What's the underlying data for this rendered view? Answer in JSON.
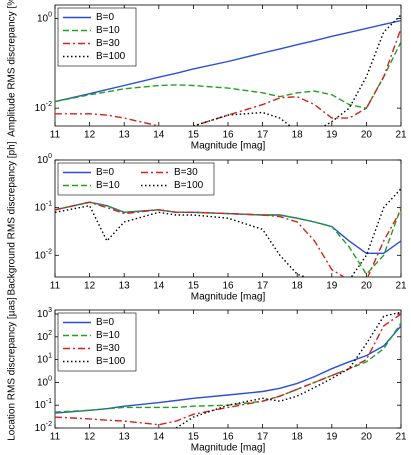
{
  "chart_data": [
    {
      "type": "line",
      "yscale": "log",
      "xlabel": "Magnitude [mag]",
      "ylabel": "Amplitude RMS discrepancy [%]",
      "legend": "upper left",
      "legend_columns": 1,
      "x": [
        11,
        12,
        12.5,
        13,
        14,
        14.5,
        15,
        16,
        17,
        17.5,
        18,
        18.5,
        19,
        19.5,
        20,
        20.5,
        21
      ],
      "xlim": [
        11,
        21
      ],
      "xticks": [
        11,
        12,
        13,
        14,
        15,
        16,
        17,
        18,
        19,
        20,
        21
      ],
      "ylim": [
        0.004,
        2
      ],
      "yticks": [
        {
          "value": 0.01,
          "label": "10^-2"
        },
        {
          "value": 1,
          "label": "10^0"
        }
      ],
      "series": [
        {
          "name": "B=0",
          "color": "#2a4fd6",
          "style": "solid",
          "values": [
            0.014,
            0.021,
            0.026,
            0.032,
            0.049,
            0.06,
            0.075,
            0.11,
            0.17,
            0.21,
            0.26,
            0.32,
            0.4,
            0.49,
            0.6,
            0.74,
            0.9
          ]
        },
        {
          "name": "B=10",
          "color": "#22a022",
          "style": "dashed",
          "values": [
            0.014,
            0.02,
            0.023,
            0.027,
            0.032,
            0.033,
            0.032,
            0.028,
            0.022,
            0.018,
            0.022,
            0.024,
            0.02,
            0.012,
            0.01,
            0.05,
            0.3
          ]
        },
        {
          "name": "B=30",
          "color": "#d62020",
          "style": "dashdot",
          "values": [
            0.0075,
            0.0075,
            0.007,
            0.006,
            0.004,
            0.003,
            0.004,
            0.007,
            0.012,
            0.017,
            0.018,
            0.012,
            0.006,
            0.006,
            0.01,
            0.05,
            0.6
          ]
        },
        {
          "name": "B=100",
          "color": "#000000",
          "style": "dotted",
          "values": [
            null,
            null,
            null,
            null,
            null,
            null,
            0.004,
            0.007,
            0.008,
            0.006,
            0.003,
            0.003,
            0.005,
            0.01,
            0.05,
            0.5,
            1.2
          ]
        }
      ]
    },
    {
      "type": "line",
      "yscale": "log",
      "xlabel": "Magnitude [mag]",
      "ylabel": "Background RMS discrepancy [ph]",
      "legend": "upper left",
      "legend_columns": 2,
      "x": [
        11,
        12,
        12.5,
        13,
        14,
        14.5,
        15,
        16,
        17,
        17.5,
        18,
        18.5,
        19,
        19.5,
        20,
        20.5,
        21
      ],
      "xlim": [
        11,
        21
      ],
      "xticks": [
        11,
        12,
        13,
        14,
        15,
        16,
        17,
        18,
        19,
        20,
        21
      ],
      "ylim": [
        0.0035,
        1
      ],
      "yticks": [
        {
          "value": 0.01,
          "label": "10^-2"
        },
        {
          "value": 0.1,
          "label": "10^-1"
        },
        {
          "value": 1,
          "label": "10^0"
        }
      ],
      "series": [
        {
          "name": "B=0",
          "color": "#2a4fd6",
          "style": "solid",
          "values": [
            0.09,
            0.13,
            0.11,
            0.08,
            0.09,
            0.08,
            0.08,
            0.075,
            0.07,
            0.07,
            0.06,
            0.05,
            0.04,
            0.02,
            0.011,
            0.011,
            0.02
          ]
        },
        {
          "name": "B=10",
          "color": "#22a022",
          "style": "dashed",
          "values": [
            0.09,
            0.13,
            0.11,
            0.08,
            0.09,
            0.08,
            0.08,
            0.075,
            0.07,
            0.07,
            0.06,
            0.05,
            0.04,
            0.015,
            0.004,
            0.01,
            0.1
          ]
        },
        {
          "name": "B=30",
          "color": "#d62020",
          "style": "dashdot",
          "values": [
            0.09,
            0.13,
            0.1,
            0.075,
            0.09,
            0.08,
            0.08,
            0.075,
            0.07,
            0.065,
            0.05,
            0.02,
            0.005,
            0.003,
            0.003,
            0.02,
            0.09
          ]
        },
        {
          "name": "B=100",
          "color": "#000000",
          "style": "dotted",
          "values": [
            0.08,
            0.11,
            0.02,
            0.05,
            0.08,
            0.07,
            0.07,
            0.06,
            0.035,
            0.01,
            0.004,
            0.003,
            0.003,
            0.003,
            0.01,
            0.1,
            0.25
          ]
        }
      ]
    },
    {
      "type": "line",
      "yscale": "log",
      "xlabel": "Magnitude [mag]",
      "ylabel": "Location RMS discrepancy [µas]",
      "legend": "upper left",
      "legend_columns": 1,
      "x": [
        11,
        12,
        12.5,
        13,
        14,
        14.5,
        15,
        16,
        17,
        17.5,
        18,
        18.5,
        19,
        19.5,
        20,
        20.5,
        21
      ],
      "xlim": [
        11,
        21
      ],
      "xticks": [
        11,
        12,
        13,
        14,
        15,
        16,
        17,
        18,
        19,
        20,
        21
      ],
      "ylim": [
        0.01,
        1500
      ],
      "yticks": [
        {
          "value": 0.01,
          "label": "10^-2"
        },
        {
          "value": 0.1,
          "label": "10^-1"
        },
        {
          "value": 1,
          "label": "10^0"
        },
        {
          "value": 10,
          "label": "10^1"
        },
        {
          "value": 100,
          "label": "10^2"
        },
        {
          "value": 1000,
          "label": "10^3"
        }
      ],
      "series": [
        {
          "name": "B=0",
          "color": "#2a4fd6",
          "style": "solid",
          "values": [
            0.045,
            0.06,
            0.07,
            0.09,
            0.13,
            0.16,
            0.2,
            0.28,
            0.4,
            0.55,
            0.9,
            1.8,
            4,
            8,
            15,
            40,
            300
          ]
        },
        {
          "name": "B=10",
          "color": "#22a022",
          "style": "dashed",
          "values": [
            0.05,
            0.06,
            0.07,
            0.08,
            0.08,
            0.08,
            0.09,
            0.1,
            0.15,
            0.25,
            0.5,
            1,
            2,
            4,
            8,
            30,
            400
          ]
        },
        {
          "name": "B=30",
          "color": "#d62020",
          "style": "dashdot",
          "values": [
            0.03,
            0.025,
            0.022,
            0.02,
            0.014,
            0.02,
            0.04,
            0.08,
            0.15,
            0.25,
            0.5,
            1,
            2,
            4,
            10,
            300,
            1000
          ]
        },
        {
          "name": "B=100",
          "color": "#000000",
          "style": "dotted",
          "values": [
            null,
            null,
            null,
            null,
            null,
            0.01,
            0.03,
            0.1,
            0.2,
            0.15,
            0.25,
            0.6,
            1.5,
            4,
            50,
            800,
            1200
          ]
        }
      ]
    }
  ]
}
